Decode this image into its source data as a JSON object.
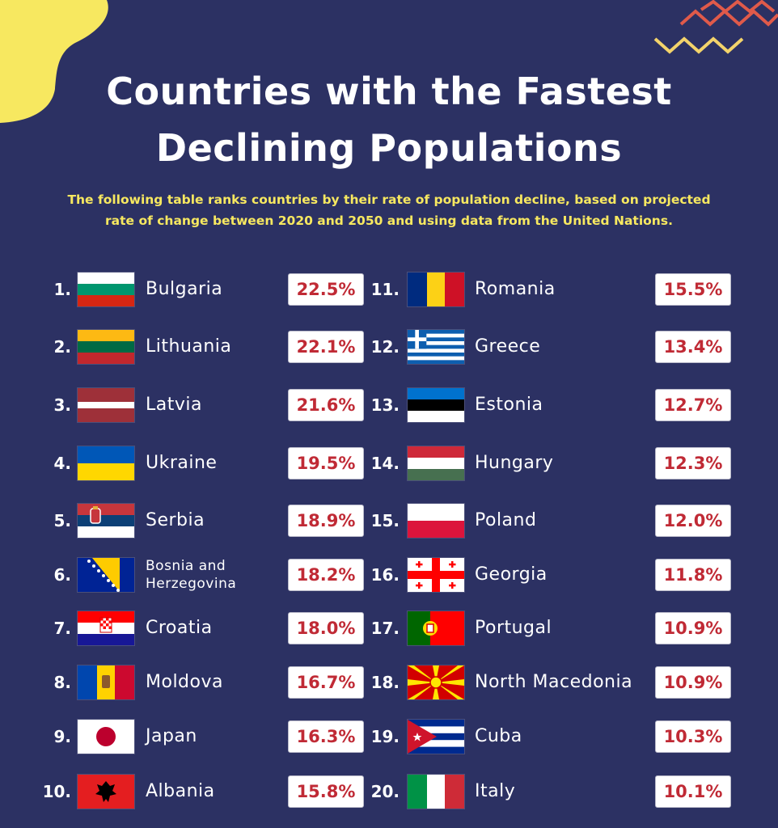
{
  "title_line1": "Countries with the Fastest",
  "title_line2": "Declining Populations",
  "subtitle_line1": "The following table ranks countries by their rate of population decline, based on projected",
  "subtitle_line2": "rate of change between 2020 and 2050 and using data from the United Nations.",
  "colors": {
    "background": "#2c3163",
    "accent_yellow": "#f7e860",
    "value_red": "#c02a35",
    "zigzag1": "#e05a4a",
    "zigzag2": "#f3d36b"
  },
  "chart_data": {
    "type": "table",
    "columns": [
      "rank",
      "country",
      "decline"
    ],
    "rows": [
      {
        "rank": "1.",
        "country": "Bulgaria",
        "value": "22.5%",
        "flag": "bulgaria-flag-icon"
      },
      {
        "rank": "2.",
        "country": "Lithuania",
        "value": "22.1%",
        "flag": "lithuania-flag-icon"
      },
      {
        "rank": "3.",
        "country": "Latvia",
        "value": "21.6%",
        "flag": "latvia-flag-icon"
      },
      {
        "rank": "4.",
        "country": "Ukraine",
        "value": "19.5%",
        "flag": "ukraine-flag-icon"
      },
      {
        "rank": "5.",
        "country": "Serbia",
        "value": "18.9%",
        "flag": "serbia-flag-icon"
      },
      {
        "rank": "6.",
        "country": "Bosnia and Herzegovina",
        "value": "18.2%",
        "flag": "bosnia-flag-icon"
      },
      {
        "rank": "7.",
        "country": "Croatia",
        "value": "18.0%",
        "flag": "croatia-flag-icon"
      },
      {
        "rank": "8.",
        "country": "Moldova",
        "value": "16.7%",
        "flag": "moldova-flag-icon"
      },
      {
        "rank": "9.",
        "country": "Japan",
        "value": "16.3%",
        "flag": "japan-flag-icon"
      },
      {
        "rank": "10.",
        "country": "Albania",
        "value": "15.8%",
        "flag": "albania-flag-icon"
      },
      {
        "rank": "11.",
        "country": "Romania",
        "value": "15.5%",
        "flag": "romania-flag-icon"
      },
      {
        "rank": "12.",
        "country": "Greece",
        "value": "13.4%",
        "flag": "greece-flag-icon"
      },
      {
        "rank": "13.",
        "country": "Estonia",
        "value": "12.7%",
        "flag": "estonia-flag-icon"
      },
      {
        "rank": "14.",
        "country": "Hungary",
        "value": "12.3%",
        "flag": "hungary-flag-icon"
      },
      {
        "rank": "15.",
        "country": "Poland",
        "value": "12.0%",
        "flag": "poland-flag-icon"
      },
      {
        "rank": "16.",
        "country": "Georgia",
        "value": "11.8%",
        "flag": "georgia-flag-icon"
      },
      {
        "rank": "17.",
        "country": "Portugal",
        "value": "10.9%",
        "flag": "portugal-flag-icon"
      },
      {
        "rank": "18.",
        "country": "North Macedonia",
        "value": "10.9%",
        "flag": "north-macedonia-flag-icon"
      },
      {
        "rank": "19.",
        "country": "Cuba",
        "value": "10.3%",
        "flag": "cuba-flag-icon"
      },
      {
        "rank": "20.",
        "country": "Italy",
        "value": "10.1%",
        "flag": "italy-flag-icon"
      }
    ]
  }
}
